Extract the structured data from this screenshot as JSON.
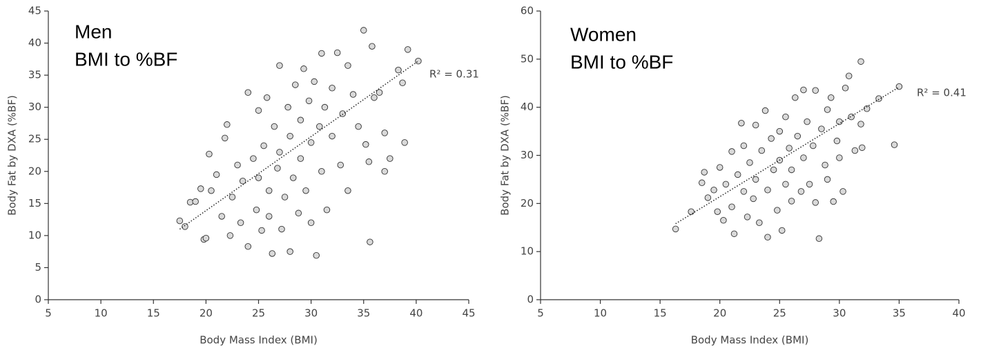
{
  "chart_data": [
    {
      "type": "scatter",
      "title": "Men",
      "subtitle": "BMI to %BF",
      "x_label": "Body Mass Index (BMI)",
      "y_label": "Body Fat by DXA (%BF)",
      "xlim": [
        5,
        45
      ],
      "xticks": [
        5,
        10,
        15,
        20,
        25,
        30,
        35,
        40,
        45
      ],
      "ylim": [
        0,
        45
      ],
      "yticks": [
        0,
        5,
        10,
        15,
        20,
        25,
        30,
        35,
        40,
        45
      ],
      "grid": false,
      "series": [
        {
          "color": "#d9d9d9",
          "x": [
            17.5,
            18,
            18.5,
            19,
            19.5,
            19.8,
            20,
            20.3,
            20.5,
            21,
            21.5,
            21.8,
            22,
            22.3,
            22.5,
            23,
            23.3,
            23.5,
            24,
            24,
            24.5,
            24.8,
            25,
            25,
            25.3,
            25.5,
            25.8,
            26,
            26,
            26.3,
            26.5,
            26.8,
            27,
            27,
            27.2,
            27.5,
            27.8,
            28,
            28,
            28.3,
            28.5,
            28.8,
            29,
            29,
            29.3,
            29.5,
            29.8,
            30,
            30,
            30.3,
            30.5,
            30.8,
            31,
            31,
            31.3,
            31.5,
            32,
            32,
            32.5,
            32.8,
            33,
            33.5,
            33.5,
            34,
            34.5,
            35,
            35.2,
            35.5,
            35.6,
            35.8,
            36,
            36.5,
            37,
            37,
            37.5,
            38.3,
            38.7,
            38.9,
            39.2,
            40.2
          ],
          "values": [
            12.3,
            11.4,
            15.2,
            15.3,
            17.3,
            9.4,
            9.6,
            22.7,
            17,
            19.5,
            13,
            25.2,
            27.3,
            10,
            16,
            21,
            12,
            18.5,
            32.3,
            8.3,
            22,
            14,
            29.5,
            19,
            10.8,
            24,
            31.5,
            17,
            13,
            7.2,
            27,
            20.5,
            36.5,
            23,
            11,
            16,
            30,
            7.5,
            25.5,
            19,
            33.5,
            13.5,
            28,
            22,
            36,
            17,
            31,
            24.5,
            12,
            34,
            6.9,
            27,
            20,
            38.4,
            30,
            14,
            25.5,
            33,
            38.5,
            21,
            29,
            36.5,
            17,
            32,
            27,
            42,
            24.2,
            21.5,
            9,
            39.5,
            31.5,
            32.3,
            26,
            20,
            22,
            35.8,
            33.8,
            24.5,
            39,
            37.2
          ]
        }
      ],
      "trendline": {
        "x": [
          17.5,
          40.2
        ],
        "values": [
          11,
          37.2
        ]
      },
      "annotation": "R² = 0.31"
    },
    {
      "type": "scatter",
      "title": "Women",
      "subtitle": "BMI to %BF",
      "x_label": "Body Mass Index (BMI)",
      "y_label": "Body Fat by DXA (%BF)",
      "xlim": [
        5,
        40
      ],
      "xticks": [
        5,
        10,
        15,
        20,
        25,
        30,
        35,
        40
      ],
      "ylim": [
        0,
        60
      ],
      "yticks": [
        0,
        10,
        20,
        30,
        40,
        50,
        60
      ],
      "grid": false,
      "series": [
        {
          "color": "#d9d9d9",
          "x": [
            16.3,
            17.6,
            18.5,
            18.7,
            19,
            19.5,
            19.8,
            20,
            20.3,
            20.5,
            21,
            21,
            21.2,
            21.5,
            21.8,
            22,
            22,
            22.3,
            22.5,
            22.8,
            23,
            23,
            23.3,
            23.5,
            23.8,
            24,
            24,
            24.3,
            24.5,
            24.8,
            25,
            25,
            25.2,
            25.5,
            25.5,
            25.8,
            26,
            26,
            26.3,
            26.5,
            26.8,
            27,
            27,
            27.3,
            27.5,
            27.8,
            28,
            28,
            28.3,
            28.5,
            28.8,
            29,
            29,
            29.3,
            29.5,
            29.8,
            30,
            30,
            30.3,
            30.5,
            30.8,
            31,
            31.3,
            31.8,
            31.8,
            31.9,
            32.3,
            33.3,
            34.6,
            35
          ],
          "values": [
            14.7,
            18.3,
            24.3,
            26.5,
            21.2,
            22.8,
            18.3,
            27.5,
            16.5,
            24,
            30.8,
            19.3,
            13.7,
            26,
            36.7,
            22.5,
            32,
            17.2,
            28.5,
            21,
            36.3,
            25,
            16,
            31,
            39.3,
            13,
            22.8,
            33.5,
            27,
            18.6,
            35,
            29,
            14.4,
            24,
            38,
            31.5,
            20.5,
            27,
            42,
            34,
            22.5,
            43.6,
            29.5,
            37,
            24,
            32,
            43.5,
            20.2,
            12.7,
            35.5,
            28,
            39.5,
            25,
            42,
            20.4,
            33,
            37,
            29.5,
            22.5,
            44,
            46.5,
            38,
            31,
            49.5,
            36.5,
            31.6,
            39.7,
            41.8,
            32.2,
            44.3
          ]
        }
      ],
      "trendline": {
        "x": [
          16.3,
          35
        ],
        "values": [
          15.8,
          44.2
        ]
      },
      "annotation": "R² = 0.41"
    }
  ]
}
